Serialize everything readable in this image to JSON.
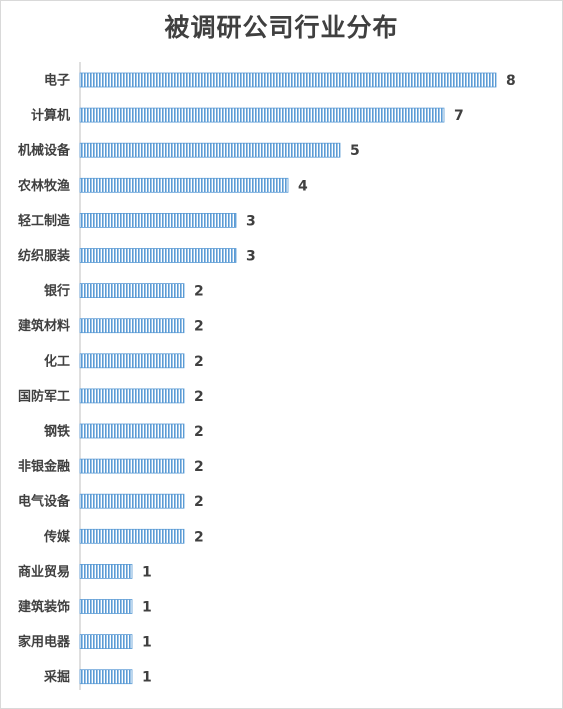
{
  "chart_data": {
    "type": "bar",
    "orientation": "horizontal",
    "title": "被调研公司行业分布",
    "categories": [
      "电子",
      "计算机",
      "机械设备",
      "农林牧渔",
      "轻工制造",
      "纺织服装",
      "银行",
      "建筑材料",
      "化工",
      "国防军工",
      "钢铁",
      "非银金融",
      "电气设备",
      "传媒",
      "商业贸易",
      "建筑装饰",
      "家用电器",
      "采掘"
    ],
    "values": [
      8,
      7,
      5,
      4,
      3,
      3,
      2,
      2,
      2,
      2,
      2,
      2,
      2,
      2,
      1,
      1,
      1,
      1
    ],
    "xlim": [
      0,
      8
    ],
    "grid": false,
    "legend": "none",
    "data_labels": true,
    "bar_color": "#5b9bd5",
    "bar_stripe_color": "#ffffff",
    "axis_color": "#bfbfbf"
  }
}
